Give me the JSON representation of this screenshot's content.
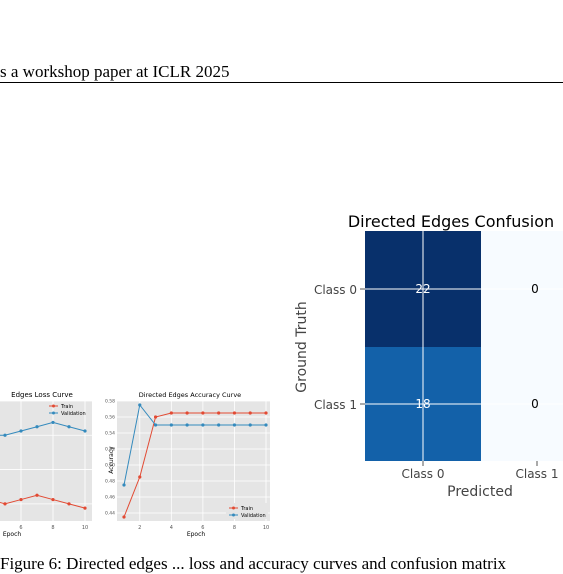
{
  "header": {
    "text": "s a workshop paper at ICLR 2025"
  },
  "caption": {
    "text": "Figure 6: Directed edges ... loss and accuracy curves and confusion matrix"
  },
  "chart_data": [
    {
      "type": "line",
      "title": "Edges Loss Curve",
      "xlabel": "Epoch",
      "ylabel": "",
      "legend_placement": "top-right",
      "grid": true,
      "x": [
        1,
        2,
        3,
        4,
        5,
        6,
        7,
        8,
        9,
        10
      ],
      "x_ticks_visible": [
        "6",
        "8",
        "10"
      ],
      "series": [
        {
          "name": "Train",
          "values": [
            0.64,
            0.62,
            0.61,
            0.605,
            0.6,
            0.605,
            0.61,
            0.605,
            0.6,
            0.595
          ],
          "color": "#e24a33"
        },
        {
          "name": "Validation",
          "values": [
            0.68,
            0.68,
            0.68,
            0.68,
            0.68,
            0.685,
            0.69,
            0.695,
            0.69,
            0.685
          ],
          "color": "#348abd"
        }
      ]
    },
    {
      "type": "line",
      "title": "Directed Edges Accuracy Curve",
      "xlabel": "Epoch",
      "ylabel": "Accuracy",
      "legend_placement": "bottom-right",
      "grid": true,
      "x": [
        1,
        2,
        3,
        4,
        5,
        6,
        7,
        8,
        9,
        10
      ],
      "x_ticks": [
        "2",
        "4",
        "6",
        "8",
        "10"
      ],
      "y_ticks": [
        "0.44",
        "0.46",
        "0.48",
        "0.50",
        "0.52",
        "0.54",
        "0.56",
        "0.58"
      ],
      "ylim": [
        0.43,
        0.58
      ],
      "series": [
        {
          "name": "Train",
          "values": [
            0.435,
            0.485,
            0.56,
            0.565,
            0.565,
            0.565,
            0.565,
            0.565,
            0.565,
            0.565
          ],
          "color": "#e24a33"
        },
        {
          "name": "Validation",
          "values": [
            0.475,
            0.575,
            0.55,
            0.55,
            0.55,
            0.55,
            0.55,
            0.55,
            0.55,
            0.55
          ],
          "color": "#348abd"
        }
      ]
    },
    {
      "type": "heatmap",
      "title": "Directed Edges Confusion",
      "xlabel": "Predicted",
      "ylabel": "Ground Truth",
      "rows": [
        "Class 0",
        "Class 1"
      ],
      "columns": [
        "Class 0",
        "Class 1"
      ],
      "values": [
        [
          22,
          0
        ],
        [
          18,
          0
        ]
      ],
      "cell_labels": [
        [
          "22",
          "0"
        ],
        [
          "18",
          "0"
        ]
      ],
      "colors": {
        "high": "#08306b",
        "mid": "#1361a9",
        "low": "#f7fbff"
      }
    }
  ]
}
